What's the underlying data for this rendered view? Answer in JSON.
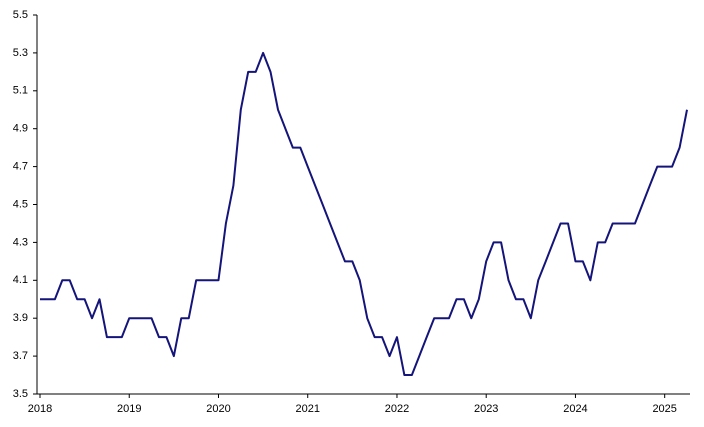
{
  "chart_data": {
    "type": "line",
    "x": [
      2018,
      2018.083,
      2018.167,
      2018.25,
      2018.333,
      2018.417,
      2018.5,
      2018.583,
      2018.667,
      2018.75,
      2018.833,
      2018.917,
      2019,
      2019.083,
      2019.167,
      2019.25,
      2019.333,
      2019.417,
      2019.5,
      2019.583,
      2019.667,
      2019.75,
      2019.833,
      2019.917,
      2020,
      2020.083,
      2020.167,
      2020.25,
      2020.333,
      2020.417,
      2020.5,
      2020.583,
      2020.667,
      2020.75,
      2020.833,
      2020.917,
      2021,
      2021.083,
      2021.167,
      2021.25,
      2021.333,
      2021.417,
      2021.5,
      2021.583,
      2021.667,
      2021.75,
      2021.833,
      2021.917,
      2022,
      2022.083,
      2022.167,
      2022.25,
      2022.333,
      2022.417,
      2022.5,
      2022.583,
      2022.667,
      2022.75,
      2022.833,
      2022.917,
      2023,
      2023.083,
      2023.167,
      2023.25,
      2023.333,
      2023.417,
      2023.5,
      2023.583,
      2023.667,
      2023.75,
      2023.833,
      2023.917,
      2024,
      2024.083,
      2024.167,
      2024.25,
      2024.333,
      2024.417,
      2024.5,
      2024.583,
      2024.667,
      2024.75,
      2024.833,
      2024.917,
      2025,
      2025.083,
      2025.167,
      2025.25
    ],
    "series": [
      {
        "color": "#14147a",
        "values": [
          4.0,
          4.0,
          4.0,
          4.1,
          4.1,
          4.0,
          4.0,
          3.9,
          4.0,
          3.8,
          3.8,
          3.8,
          3.9,
          3.9,
          3.9,
          3.9,
          3.8,
          3.8,
          3.7,
          3.9,
          3.9,
          4.1,
          4.1,
          4.1,
          4.1,
          4.4,
          4.6,
          5.0,
          5.2,
          5.2,
          5.3,
          5.2,
          5.0,
          4.9,
          4.8,
          4.8,
          4.7,
          4.6,
          4.5,
          4.4,
          4.3,
          4.2,
          4.2,
          4.1,
          3.9,
          3.8,
          3.8,
          3.7,
          3.8,
          3.6,
          3.6,
          3.7,
          3.8,
          3.9,
          3.9,
          3.9,
          4.0,
          4.0,
          3.9,
          4.0,
          4.2,
          4.3,
          4.3,
          4.1,
          4.0,
          4.0,
          3.9,
          4.1,
          4.2,
          4.3,
          4.4,
          4.4,
          4.2,
          4.2,
          4.1,
          4.3,
          4.3,
          4.4,
          4.4,
          4.4,
          4.4,
          4.5,
          4.6,
          4.7,
          4.7,
          4.7,
          4.8,
          5.0
        ]
      }
    ],
    "xlim": [
      2018,
      2025.25
    ],
    "xticks": [
      2018,
      2019,
      2020,
      2021,
      2022,
      2023,
      2024,
      2025
    ],
    "ylim": [
      3.5,
      5.5
    ],
    "yticks": [
      3.5,
      3.7,
      3.9,
      4.1,
      4.3,
      4.5,
      4.7,
      4.9,
      5.1,
      5.3,
      5.5
    ],
    "grid": false
  }
}
